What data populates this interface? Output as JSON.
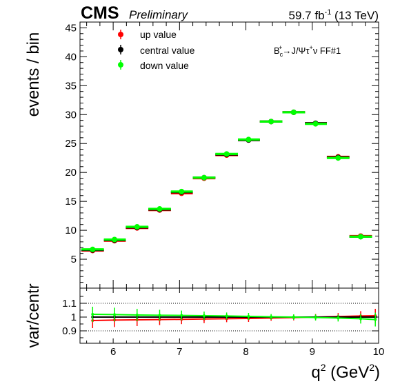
{
  "header": {
    "experiment": "CMS",
    "status": "Preliminary",
    "luminosity_prefix": "59.7 fb",
    "luminosity_exp": "-1",
    "luminosity_suffix": " (13 TeV)"
  },
  "annotation": {
    "base": "B",
    "base_sub": "c",
    "base_sup": "+",
    "arrow": "→J/Ψτ",
    "tau_sup": "+",
    "tail": "ν FF#1"
  },
  "chart_data": [
    {
      "type": "scatter",
      "panel": "main",
      "ylabel": "events / bin",
      "xlim": [
        5.5,
        10
      ],
      "ylim": [
        0,
        46
      ],
      "x_ticks": [
        6,
        7,
        8,
        9,
        10
      ],
      "y_ticks": [
        5,
        10,
        15,
        20,
        25,
        30,
        35,
        40,
        45
      ],
      "legend_position": "top-left",
      "grid": false,
      "bin_edges": [
        5.52,
        5.86,
        6.19,
        6.53,
        6.87,
        7.2,
        7.54,
        7.88,
        8.21,
        8.55,
        8.89,
        9.22,
        9.56,
        9.9
      ],
      "x": [
        5.69,
        6.02,
        6.36,
        6.7,
        7.03,
        7.37,
        7.71,
        8.04,
        8.38,
        8.72,
        9.05,
        9.39,
        9.73
      ],
      "series": [
        {
          "name": "up value",
          "color": "#ff0000",
          "values": [
            6.5,
            8.2,
            10.4,
            13.5,
            16.4,
            19.0,
            23.0,
            25.6,
            28.8,
            30.4,
            28.5,
            22.7,
            9.0
          ],
          "errors": [
            0.3,
            0.3,
            0.3,
            0.3,
            0.3,
            0.3,
            0.3,
            0.3,
            0.3,
            0.3,
            0.3,
            0.3,
            0.3
          ]
        },
        {
          "name": "central value",
          "color": "#000000",
          "values": [
            6.6,
            8.3,
            10.5,
            13.6,
            16.6,
            19.1,
            23.1,
            25.6,
            28.8,
            30.4,
            28.5,
            22.6,
            8.9
          ],
          "errors": [
            0.3,
            0.3,
            0.3,
            0.3,
            0.3,
            0.3,
            0.3,
            0.3,
            0.3,
            0.3,
            0.3,
            0.3,
            0.3
          ]
        },
        {
          "name": "down value",
          "color": "#00ff00",
          "values": [
            6.7,
            8.4,
            10.6,
            13.7,
            16.7,
            19.1,
            23.2,
            25.7,
            28.8,
            30.4,
            28.4,
            22.5,
            8.9
          ],
          "errors": [
            0.3,
            0.3,
            0.3,
            0.3,
            0.3,
            0.3,
            0.3,
            0.3,
            0.3,
            0.3,
            0.3,
            0.3,
            0.3
          ]
        }
      ]
    },
    {
      "type": "scatter",
      "panel": "ratio",
      "ylabel": "var/centr",
      "xlabel_base": "q",
      "xlabel_sup": "2",
      "xlabel_unit": " (GeV",
      "xlabel_unit_sup": "2",
      "xlabel_close": ")",
      "xlim": [
        5.5,
        10
      ],
      "ylim": [
        0.81,
        1.21
      ],
      "x_ticks": [
        6,
        7,
        8,
        9,
        10
      ],
      "x_tick_labels": [
        "6",
        "7",
        "8",
        "9",
        "10"
      ],
      "y_ticks": [
        0.9,
        1,
        1.1
      ],
      "y_tick_labels": [
        "0.9",
        "1",
        "1.1"
      ],
      "reference_lines": [
        0.9,
        1.1
      ],
      "x": [
        5.69,
        6.02,
        6.36,
        6.7,
        7.03,
        7.37,
        7.71,
        8.04,
        8.38,
        8.72,
        9.05,
        9.39,
        9.73,
        9.95
      ],
      "series": [
        {
          "name": "up value",
          "color": "#ff0000",
          "values": [
            0.975,
            0.978,
            0.98,
            0.982,
            0.984,
            0.986,
            0.988,
            0.99,
            0.993,
            0.996,
            1.0,
            1.004,
            1.008,
            1.01
          ],
          "errors": [
            0.055,
            0.05,
            0.045,
            0.04,
            0.035,
            0.03,
            0.025,
            0.025,
            0.02,
            0.02,
            0.022,
            0.025,
            0.035,
            0.05
          ]
        },
        {
          "name": "central value",
          "color": "#000000",
          "values": [
            1,
            1,
            1,
            1,
            1,
            1,
            1,
            1,
            1,
            1,
            1,
            1,
            1,
            1
          ],
          "errors": [
            0,
            0,
            0,
            0,
            0,
            0,
            0,
            0,
            0,
            0,
            0,
            0,
            0,
            0
          ]
        },
        {
          "name": "down value",
          "color": "#00ff00",
          "values": [
            1.02,
            1.018,
            1.015,
            1.013,
            1.012,
            1.01,
            1.008,
            1.005,
            1.002,
            1.0,
            0.997,
            0.993,
            0.988,
            0.982
          ],
          "errors": [
            0.055,
            0.05,
            0.045,
            0.04,
            0.035,
            0.03,
            0.025,
            0.025,
            0.02,
            0.02,
            0.022,
            0.025,
            0.035,
            0.05
          ]
        }
      ]
    }
  ]
}
